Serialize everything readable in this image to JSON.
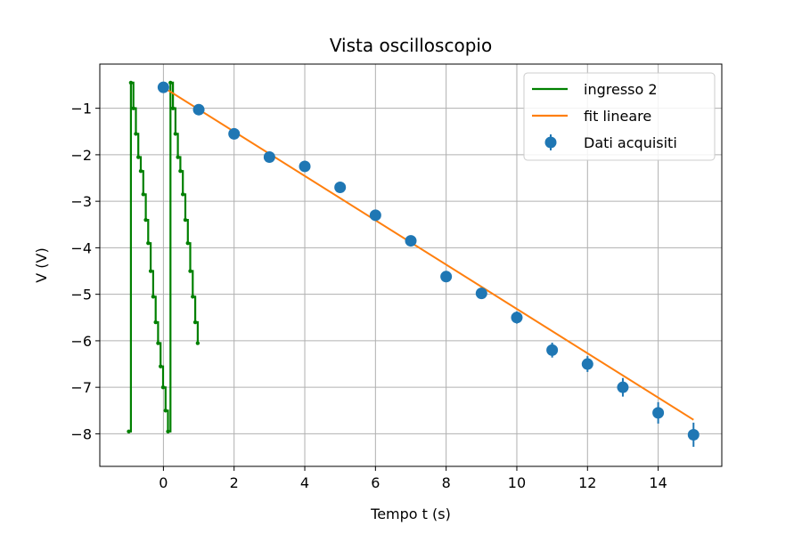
{
  "chart_data": {
    "type": "line",
    "title": "Vista oscilloscopio",
    "xlabel": "Tempo t (s)",
    "ylabel": "V (V)",
    "xlim": [
      -1.8,
      15.8
    ],
    "ylim": [
      -8.7,
      -0.05
    ],
    "xticks": [
      0,
      2,
      4,
      6,
      8,
      10,
      12,
      14
    ],
    "yticks": [
      -1,
      -2,
      -3,
      -4,
      -5,
      -6,
      -7,
      -8
    ],
    "xtick_labels": [
      "0",
      "2",
      "4",
      "6",
      "8",
      "10",
      "12",
      "14"
    ],
    "ytick_labels": [
      "−1",
      "−2",
      "−3",
      "−4",
      "−5",
      "−6",
      "−7",
      "−8"
    ],
    "grid": true,
    "legend_position": "top-right",
    "series": [
      {
        "name": "ingresso 2",
        "kind": "step-line",
        "color": "#008000",
        "x": [
          -0.98,
          -0.92,
          -0.92,
          -0.85,
          -0.85,
          -0.78,
          -0.78,
          -0.71,
          -0.71,
          -0.64,
          -0.64,
          -0.57,
          -0.57,
          -0.5,
          -0.5,
          -0.43,
          -0.43,
          -0.36,
          -0.36,
          -0.29,
          -0.29,
          -0.22,
          -0.22,
          -0.15,
          -0.15,
          -0.08,
          -0.08,
          -0.01,
          -0.01,
          0.06,
          0.06,
          0.13,
          0.13,
          0.2,
          0.2,
          0.27,
          0.27,
          0.34,
          0.34,
          0.41,
          0.41,
          0.48,
          0.48,
          0.55,
          0.55,
          0.62,
          0.62,
          0.69,
          0.69,
          0.76,
          0.76,
          0.83,
          0.83,
          0.9,
          0.9,
          0.97,
          0.97,
          1.0
        ],
        "y": [
          -7.95,
          -7.95,
          -0.45,
          -0.45,
          -1.0,
          -1.0,
          -1.55,
          -1.55,
          -2.05,
          -2.05,
          -2.35,
          -2.35,
          -2.85,
          -2.85,
          -3.4,
          -3.4,
          -3.9,
          -3.9,
          -4.5,
          -4.5,
          -5.05,
          -5.05,
          -5.6,
          -5.6,
          -6.05,
          -6.05,
          -6.55,
          -6.55,
          -7.0,
          -7.0,
          -7.5,
          -7.5,
          -7.95,
          -7.95,
          -0.45,
          -0.45,
          -1.0,
          -1.0,
          -1.55,
          -1.55,
          -2.05,
          -2.05,
          -2.35,
          -2.35,
          -2.85,
          -2.85,
          -3.4,
          -3.4,
          -3.9,
          -3.9,
          -4.5,
          -4.5,
          -5.05,
          -5.05,
          -5.6,
          -5.6,
          -6.05,
          -6.05
        ]
      },
      {
        "name": "fit lineare",
        "kind": "line",
        "color": "#ff7f0e",
        "x": [
          0,
          15
        ],
        "y": [
          -0.55,
          -7.7
        ]
      },
      {
        "name": "Dati acquisiti",
        "kind": "errorbar",
        "color": "#1f77b4",
        "x": [
          0,
          1,
          2,
          3,
          4,
          5,
          6,
          7,
          8,
          9,
          10,
          11,
          12,
          13,
          14,
          15
        ],
        "y": [
          -0.55,
          -1.03,
          -1.55,
          -2.05,
          -2.25,
          -2.7,
          -3.3,
          -3.85,
          -4.62,
          -4.98,
          -5.5,
          -6.2,
          -6.5,
          -7.0,
          -7.55,
          -8.02
        ],
        "yerr": [
          0.05,
          0.05,
          0.05,
          0.06,
          0.07,
          0.08,
          0.08,
          0.09,
          0.1,
          0.12,
          0.13,
          0.16,
          0.17,
          0.2,
          0.23,
          0.26
        ]
      }
    ]
  }
}
